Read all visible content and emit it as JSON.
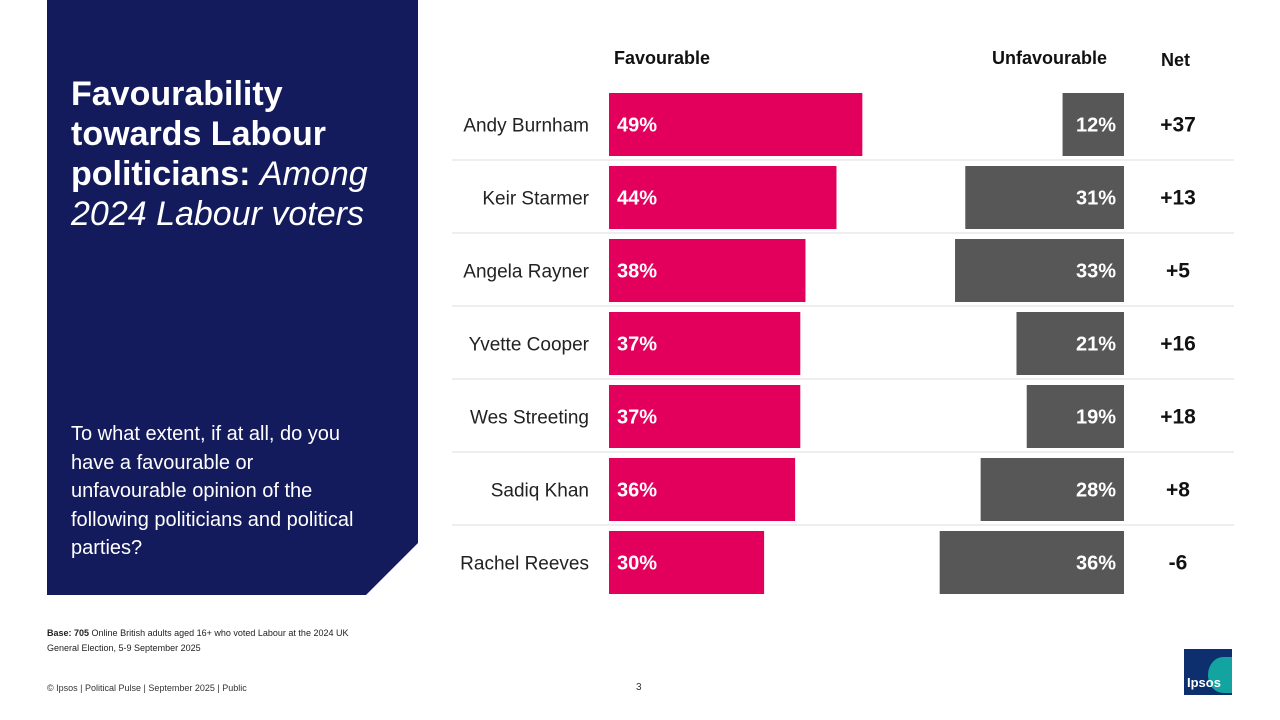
{
  "panel": {
    "title_bold": "Favourability towards Labour politicians:",
    "title_italic": "Among 2024 Labour voters",
    "question": "To what extent, if at all, do you have a favourable or unfavourable opinion of the following politicians and political parties?"
  },
  "headers": {
    "favourable": "Favourable",
    "unfavourable": "Unfavourable",
    "net": "Net"
  },
  "chart_data": {
    "type": "bar",
    "title": "Favourability towards Labour politicians: Among 2024 Labour voters",
    "categories": [
      "Andy Burnham",
      "Keir Starmer",
      "Angela Rayner",
      "Yvette Cooper",
      "Wes Streeting",
      "Sadiq Khan",
      "Rachel Reeves"
    ],
    "series": [
      {
        "name": "Favourable",
        "color": "#e3005c",
        "values": [
          49,
          44,
          38,
          37,
          37,
          36,
          30
        ]
      },
      {
        "name": "Unfavourable",
        "color": "#575757",
        "values": [
          12,
          31,
          33,
          21,
          19,
          28,
          36
        ]
      }
    ],
    "net_labels": [
      "+37",
      "+13",
      "+5",
      "+16",
      "+18",
      "+8",
      "-6"
    ],
    "unit": "%"
  },
  "footer": {
    "base_bold": "Base: 705",
    "base_text": "Online British adults aged 16+ who voted Labour at the 2024 UK General Election, 5-9 September 2025",
    "copyright": "© Ipsos | Political Pulse | September 2025 | Public",
    "page_number": "3",
    "logo_text": "Ipsos"
  },
  "colors": {
    "panel": "#141b5c",
    "favourable": "#e3005c",
    "unfavourable": "#575757",
    "divider": "#dddddd"
  }
}
